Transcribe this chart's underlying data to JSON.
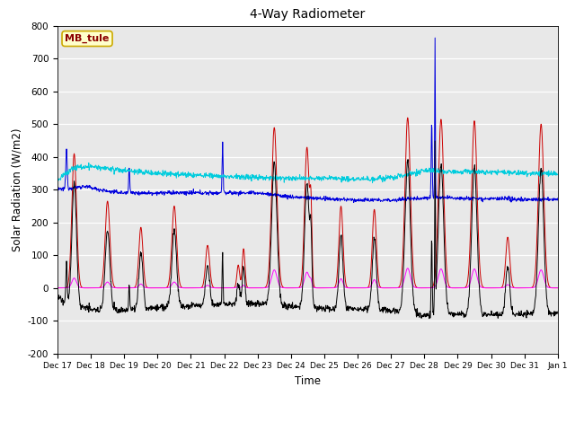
{
  "title": "4-Way Radiometer",
  "ylabel": "Solar Radiation (W/m2)",
  "xlabel": "Time",
  "station_label": "MB_tule",
  "ylim": [
    -200,
    800
  ],
  "yticks": [
    -200,
    -100,
    0,
    100,
    200,
    300,
    400,
    500,
    600,
    700,
    800
  ],
  "x_tick_labels": [
    "Dec 17",
    "Dec 18",
    "Dec 19",
    "Dec 20",
    "Dec 21",
    "Dec 22",
    "Dec 23",
    "Dec 24",
    "Dec 25",
    "Dec 26",
    "Dec 27",
    "Dec 28",
    "Dec 29",
    "Dec 30",
    "Dec 31",
    "Jan 1"
  ],
  "colors": {
    "SW_in": "#cc0000",
    "SW_out": "#ff00ff",
    "LW_in": "#0000dd",
    "LW_out": "#00ccdd",
    "Rnet_4way": "#000000"
  },
  "background_color": "#e8e8e8",
  "figsize": [
    6.4,
    4.8
  ],
  "dpi": 100
}
